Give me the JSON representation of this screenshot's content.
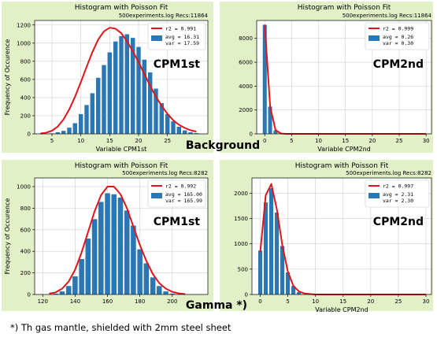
{
  "colors": {
    "panel_bg": "#e2f0c8",
    "bar": "#2a77b4",
    "fit": "#e0151c",
    "grid": "#d0d0d0"
  },
  "labels": {
    "background": "Background",
    "gamma": "Gamma *)",
    "footnote": "*) Th gas mantle, shielded with 2mm steel sheet"
  },
  "chart_data": [
    {
      "type": "bar",
      "title": "Histogram with Poisson Fit",
      "subtitle": "500experiments.log  Recs:11864",
      "xlabel": "Variable CPM1st",
      "ylabel": "Frequency of Occurence",
      "big_label": "CPM1st",
      "xlim": [
        2,
        32
      ],
      "ylim": [
        0,
        1250
      ],
      "xticks": [
        5,
        10,
        15,
        20,
        25
      ],
      "yticks": [
        0,
        200,
        400,
        600,
        800,
        1000,
        1200
      ],
      "grid": true,
      "legend_position": "top-right",
      "legend": {
        "fit": "r2  = 0.991",
        "hist_lines": [
          "avg = 16.31",
          "var = 17.59"
        ]
      },
      "bar_width": 0.8,
      "x": [
        4,
        5,
        6,
        7,
        8,
        9,
        10,
        11,
        12,
        13,
        14,
        15,
        16,
        17,
        18,
        19,
        20,
        21,
        22,
        23,
        24,
        25,
        26,
        27,
        28,
        29,
        30
      ],
      "values": [
        2,
        8,
        20,
        35,
        70,
        120,
        220,
        320,
        450,
        620,
        760,
        900,
        1020,
        1080,
        1100,
        1060,
        960,
        820,
        680,
        500,
        340,
        220,
        140,
        80,
        40,
        20,
        10
      ],
      "fit_curve": {
        "x": [
          3,
          4,
          5,
          6,
          7,
          8,
          9,
          10,
          11,
          12,
          13,
          14,
          15,
          16,
          17,
          18,
          19,
          20,
          21,
          22,
          23,
          24,
          25,
          26,
          27,
          28,
          29,
          30
        ],
        "y": [
          4,
          12,
          35,
          80,
          160,
          270,
          410,
          570,
          740,
          900,
          1040,
          1130,
          1170,
          1160,
          1110,
          1020,
          910,
          790,
          660,
          530,
          410,
          310,
          220,
          150,
          100,
          65,
          40,
          25
        ]
      }
    },
    {
      "type": "bar",
      "title": "Histogram with Poisson Fit",
      "subtitle": "500experiments.log  Recs:11864",
      "xlabel": "Variable CPM2nd",
      "ylabel": "",
      "big_label": "CPM2nd",
      "xlim": [
        -1.5,
        31
      ],
      "ylim": [
        0,
        9500
      ],
      "xticks": [
        0,
        5,
        10,
        15,
        20,
        25,
        30
      ],
      "yticks": [
        0,
        2000,
        4000,
        6000,
        8000
      ],
      "grid": true,
      "legend_position": "top-right",
      "legend": {
        "fit": "r2  = 0.999",
        "hist_lines": [
          "avg = 0.26",
          "var = 0.30"
        ]
      },
      "bar_width": 0.8,
      "x": [
        0,
        1,
        2,
        3
      ],
      "values": [
        9150,
        2300,
        300,
        50
      ],
      "fit_curve": {
        "x": [
          0,
          1,
          2,
          3,
          4,
          5,
          6,
          8,
          10,
          15,
          20,
          25,
          30
        ],
        "y": [
          9150,
          2300,
          320,
          30,
          3,
          0,
          0,
          0,
          0,
          0,
          0,
          0,
          0
        ]
      }
    },
    {
      "type": "bar",
      "title": "Histogram with Poisson Fit",
      "subtitle": "500experiments.log  Recs:8282",
      "xlabel": "",
      "ylabel": "Frequency of Occurence",
      "big_label": "CPM1st",
      "xlim": [
        115,
        222
      ],
      "ylim": [
        0,
        1080
      ],
      "xticks": [
        120,
        140,
        160,
        180,
        200
      ],
      "yticks": [
        0,
        200,
        400,
        600,
        800,
        1000
      ],
      "grid": true,
      "legend_position": "top-right",
      "legend": {
        "fit": "r2  = 0.992",
        "hist_lines": [
          "avg = 165.00",
          "var = 165.99"
        ]
      },
      "bar_width": 3.4,
      "x": [
        128,
        132,
        136,
        140,
        144,
        148,
        152,
        156,
        160,
        164,
        168,
        172,
        176,
        180,
        184,
        188,
        192,
        196,
        200,
        204
      ],
      "values": [
        10,
        30,
        80,
        170,
        330,
        520,
        700,
        860,
        940,
        930,
        900,
        780,
        640,
        420,
        290,
        160,
        80,
        30,
        10,
        3
      ],
      "fit_curve": {
        "x": [
          124,
          128,
          132,
          136,
          140,
          144,
          148,
          152,
          156,
          160,
          164,
          168,
          172,
          176,
          180,
          184,
          188,
          192,
          196,
          200,
          204,
          208
        ],
        "y": [
          8,
          20,
          55,
          120,
          230,
          390,
          580,
          770,
          920,
          1000,
          1000,
          930,
          800,
          630,
          460,
          310,
          190,
          105,
          55,
          25,
          10,
          4
        ]
      }
    },
    {
      "type": "bar",
      "title": "Histogram with Poisson Fit",
      "subtitle": "500experiments.log  Recs:8282",
      "xlabel": "Variable CPM2nd",
      "ylabel": "",
      "big_label": "CPM2nd",
      "xlim": [
        -1.5,
        31
      ],
      "ylim": [
        0,
        2300
      ],
      "xticks": [
        0,
        5,
        10,
        15,
        20,
        25,
        30
      ],
      "yticks": [
        0,
        500,
        1000,
        1500,
        2000
      ],
      "grid": true,
      "legend_position": "top-right",
      "legend": {
        "fit": "r2  = 0.997",
        "hist_lines": [
          "avg = 2.31",
          "var = 2.30"
        ]
      },
      "bar_width": 0.8,
      "x": [
        0,
        1,
        2,
        3,
        4,
        5,
        6,
        7
      ],
      "values": [
        870,
        1820,
        2100,
        1620,
        960,
        440,
        170,
        50
      ],
      "fit_curve": {
        "x": [
          0,
          1,
          2,
          3,
          4,
          5,
          6,
          7,
          8,
          10,
          15,
          20,
          25,
          30
        ],
        "y": [
          830,
          1960,
          2180,
          1680,
          970,
          450,
          170,
          60,
          20,
          0,
          0,
          0,
          0,
          0
        ]
      }
    }
  ]
}
